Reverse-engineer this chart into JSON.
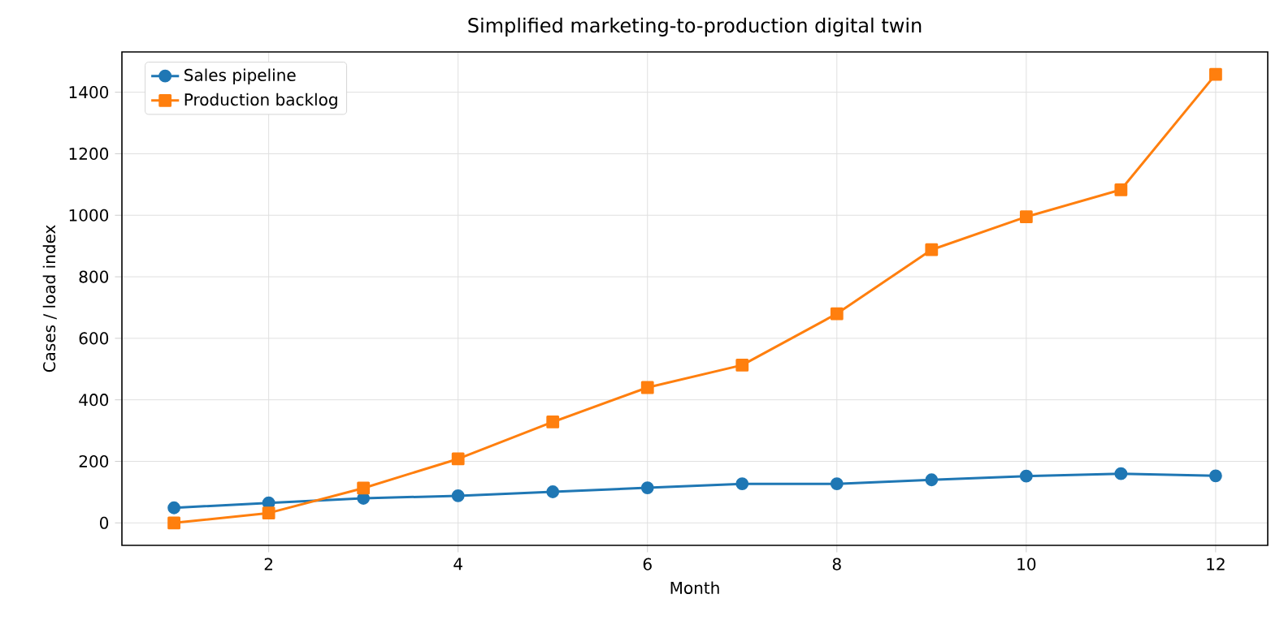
{
  "chart_data": {
    "type": "line",
    "title": "Simplified marketing-to-production digital twin",
    "xlabel": "Month",
    "ylabel": "Cases / load index",
    "x": [
      1,
      2,
      3,
      4,
      5,
      6,
      7,
      8,
      9,
      10,
      11,
      12
    ],
    "series": [
      {
        "name": "Sales pipeline",
        "color": "#1f77b4",
        "marker": "circle",
        "values": [
          49,
          65,
          80,
          88,
          101,
          114,
          127,
          127,
          140,
          152,
          160,
          153
        ]
      },
      {
        "name": "Production backlog",
        "color": "#ff7f0e",
        "marker": "square",
        "values": [
          0,
          32,
          113,
          208,
          328,
          440,
          513,
          680,
          888,
          995,
          1083,
          1458
        ]
      }
    ],
    "xlim": [
      0.45,
      12.55
    ],
    "ylim": [
      -73,
      1531
    ],
    "xticks": [
      2,
      4,
      6,
      8,
      10,
      12
    ],
    "yticks": [
      0,
      200,
      400,
      600,
      800,
      1000,
      1200,
      1400
    ],
    "grid": true,
    "legend": "top left",
    "line_style": "solid"
  }
}
